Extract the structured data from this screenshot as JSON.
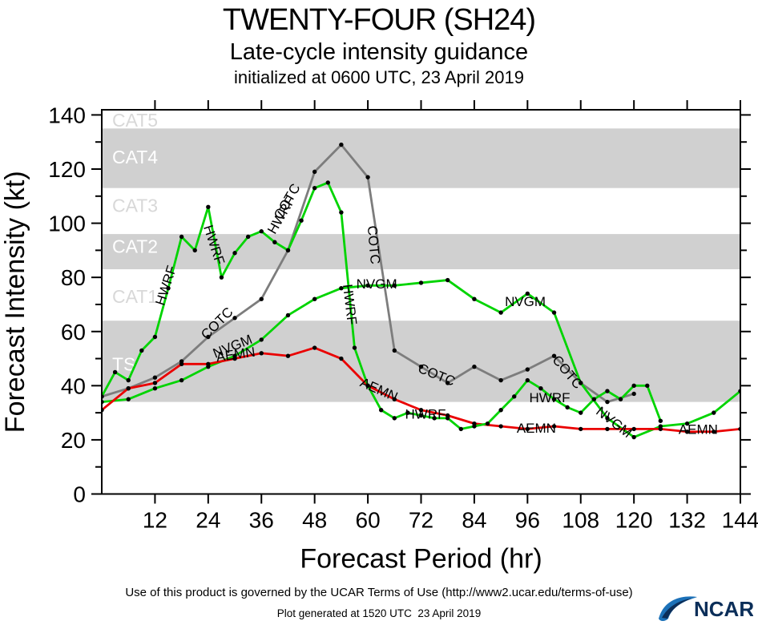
{
  "header": {
    "title": "TWENTY-FOUR (SH24)",
    "subtitle": "Late-cycle intensity guidance",
    "init_line": "initialized at 0600 UTC, 23 April 2019"
  },
  "footer": {
    "terms": "Use of this product is governed by the UCAR Terms of Use (http://www2.ucar.edu/terms-of-use)",
    "generated": "Plot generated at 1520 UTC  23 April 2019",
    "logo_text": "NCAR"
  },
  "chart_data": {
    "type": "line",
    "title": "TWENTY-FOUR (SH24)",
    "xlabel": "Forecast Period (hr)",
    "ylabel": "Forecast Intensity (kt)",
    "xlim": [
      0,
      144
    ],
    "ylim": [
      0,
      141.9
    ],
    "xticks": [
      12,
      24,
      36,
      48,
      60,
      72,
      84,
      96,
      108,
      120,
      132,
      144
    ],
    "yticks_major": [
      0,
      20,
      40,
      60,
      80,
      100,
      120,
      140
    ],
    "yticks_minor": [
      10,
      30,
      50,
      70,
      90,
      110,
      130
    ],
    "grid": false,
    "legend": "labels-drawn-along-lines",
    "colors": {
      "band_fill": "#d0d0d0",
      "marker": "#000000",
      "axis": "#000000"
    },
    "bands": [
      {
        "label": "TS",
        "from": 34,
        "to": 64,
        "shaded": true,
        "label_v": 48,
        "label_color": "#ffffff"
      },
      {
        "label": "CAT1",
        "from": 64,
        "to": 83,
        "shaded": false,
        "label_v": 73,
        "label_color": "#d8d8d8"
      },
      {
        "label": "CAT2",
        "from": 83,
        "to": 96,
        "shaded": true,
        "label_v": 91.5,
        "label_color": "#ffffff"
      },
      {
        "label": "CAT3",
        "from": 96,
        "to": 113,
        "shaded": false,
        "label_v": 106.5,
        "label_color": "#d8d8d8"
      },
      {
        "label": "CAT4",
        "from": 113,
        "to": 135,
        "shaded": true,
        "label_v": 124.5,
        "label_color": "#ffffff"
      },
      {
        "label": "CAT5",
        "from": 135,
        "to": 141.9,
        "shaded": false,
        "label_v": 138,
        "label_color": "#d8d8d8"
      }
    ],
    "series": [
      {
        "name": "COTC",
        "color": "#7d7d7d",
        "points": [
          [
            0,
            36
          ],
          [
            6,
            39
          ],
          [
            12,
            43
          ],
          [
            18,
            49
          ],
          [
            24,
            58
          ],
          [
            30,
            65
          ],
          [
            36,
            72
          ],
          [
            42,
            90
          ],
          [
            48,
            119
          ],
          [
            54,
            129
          ],
          [
            60,
            117
          ],
          [
            66,
            53
          ],
          [
            72,
            47
          ],
          [
            78,
            41
          ],
          [
            84,
            47
          ],
          [
            90,
            42
          ],
          [
            96,
            46
          ],
          [
            102,
            51
          ],
          [
            108,
            41
          ],
          [
            114,
            34
          ],
          [
            120,
            37
          ]
        ],
        "labels": [
          {
            "t": 26,
            "v": 63,
            "rot": -45
          },
          {
            "t": 41.8,
            "v": 108,
            "rot": -60
          },
          {
            "t": 61.3,
            "v": 92,
            "rot": 85
          },
          {
            "t": 75.5,
            "v": 44,
            "rot": 22
          },
          {
            "t": 105,
            "v": 45,
            "rot": 50
          }
        ]
      },
      {
        "name": "NVGM",
        "color": "#00d400",
        "points": [
          [
            0,
            34
          ],
          [
            6,
            35
          ],
          [
            12,
            39
          ],
          [
            18,
            42
          ],
          [
            24,
            47
          ],
          [
            30,
            51
          ],
          [
            36,
            57
          ],
          [
            42,
            66
          ],
          [
            48,
            72
          ],
          [
            54,
            76
          ],
          [
            60,
            77
          ],
          [
            66,
            77
          ],
          [
            72,
            78
          ],
          [
            78,
            79
          ],
          [
            84,
            72
          ],
          [
            90,
            67
          ],
          [
            96,
            74
          ],
          [
            102,
            67
          ],
          [
            108,
            41
          ],
          [
            114,
            28
          ],
          [
            120,
            21
          ],
          [
            126,
            25
          ],
          [
            132,
            26
          ],
          [
            138,
            30
          ],
          [
            144,
            38
          ]
        ],
        "labels": [
          {
            "t": 29.5,
            "v": 54.5,
            "rot": -22
          },
          {
            "t": 62,
            "v": 77.5,
            "rot": 0
          },
          {
            "t": 95.5,
            "v": 71,
            "rot": 0
          },
          {
            "t": 115.5,
            "v": 26.5,
            "rot": 38
          }
        ]
      },
      {
        "name": "AEMN",
        "color": "#ea0000",
        "points": [
          [
            0,
            31
          ],
          [
            6,
            39
          ],
          [
            12,
            41
          ],
          [
            18,
            48
          ],
          [
            24,
            48
          ],
          [
            30,
            50
          ],
          [
            36,
            52
          ],
          [
            42,
            51
          ],
          [
            48,
            54
          ],
          [
            54,
            50
          ],
          [
            60,
            40
          ],
          [
            66,
            35
          ],
          [
            72,
            31
          ],
          [
            78,
            29
          ],
          [
            84,
            26
          ],
          [
            90,
            25
          ],
          [
            96,
            24
          ],
          [
            102,
            25
          ],
          [
            108,
            24
          ],
          [
            114,
            24
          ],
          [
            120,
            24
          ],
          [
            126,
            24
          ],
          [
            132,
            23
          ],
          [
            138,
            23
          ],
          [
            144,
            24
          ]
        ],
        "labels": [
          {
            "t": 30.2,
            "v": 51.5,
            "rot": -8
          },
          {
            "t": 62.5,
            "v": 38.5,
            "rot": 24
          },
          {
            "t": 98,
            "v": 24.2,
            "rot": 0
          },
          {
            "t": 134.5,
            "v": 23.8,
            "rot": 0
          }
        ]
      },
      {
        "name": "HWRF",
        "color": "#00d400",
        "points": [
          [
            0,
            36
          ],
          [
            3,
            45
          ],
          [
            6,
            42
          ],
          [
            9,
            53
          ],
          [
            12,
            58
          ],
          [
            15,
            76
          ],
          [
            18,
            95
          ],
          [
            21,
            90
          ],
          [
            24,
            106
          ],
          [
            27,
            80
          ],
          [
            30,
            89
          ],
          [
            33,
            95
          ],
          [
            36,
            97
          ],
          [
            39,
            93
          ],
          [
            42,
            90
          ],
          [
            45,
            101
          ],
          [
            48,
            113
          ],
          [
            51,
            115
          ],
          [
            54,
            104
          ],
          [
            57,
            54
          ],
          [
            60,
            40
          ],
          [
            63,
            31
          ],
          [
            66,
            28
          ],
          [
            69,
            30
          ],
          [
            72,
            29
          ],
          [
            75,
            28
          ],
          [
            78,
            28
          ],
          [
            81,
            24
          ],
          [
            84,
            25
          ],
          [
            87,
            26
          ],
          [
            90,
            31
          ],
          [
            93,
            36
          ],
          [
            96,
            42
          ],
          [
            99,
            39
          ],
          [
            102,
            35
          ],
          [
            105,
            32
          ],
          [
            108,
            30
          ],
          [
            111,
            35
          ],
          [
            114,
            38
          ],
          [
            117,
            35
          ],
          [
            120,
            40
          ],
          [
            123,
            40
          ],
          [
            126,
            27
          ]
        ],
        "labels": [
          {
            "t": 14.5,
            "v": 77,
            "rot": -72
          },
          {
            "t": 25.3,
            "v": 92,
            "rot": 72
          },
          {
            "t": 40.5,
            "v": 103,
            "rot": -60
          },
          {
            "t": 55.9,
            "v": 70,
            "rot": 83
          },
          {
            "t": 73,
            "v": 29.5,
            "rot": 0
          },
          {
            "t": 101,
            "v": 35.5,
            "rot": 0
          }
        ]
      }
    ]
  }
}
